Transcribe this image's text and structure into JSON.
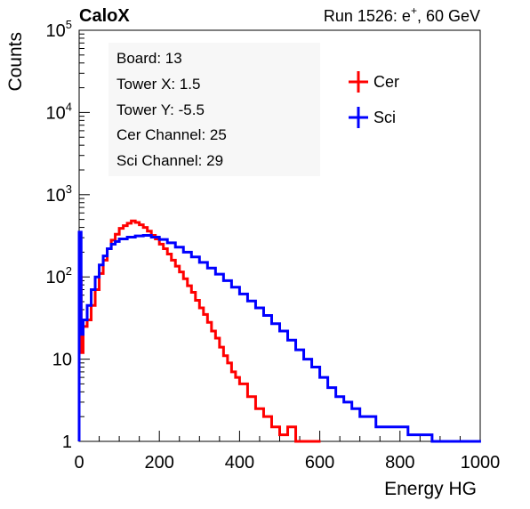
{
  "header": {
    "left_label": "CaloX",
    "right_label_prefix": "Run 1526: e",
    "right_label_sup": "+",
    "right_label_suffix": ", 60 GeV"
  },
  "info_box": {
    "lines": [
      "Board: 13",
      "Tower X: 1.5",
      "Tower Y: -5.5",
      "Cer Channel: 25",
      "Sci Channel: 29"
    ]
  },
  "chart_data": {
    "type": "line",
    "title": "",
    "xlabel": "Energy HG",
    "ylabel": "Counts",
    "xlim": [
      0,
      1000
    ],
    "ylim": [
      1,
      100000
    ],
    "y_scale": "log",
    "grid": false,
    "legend_position": "top-right",
    "x_ticks": [
      "0",
      "200",
      "400",
      "600",
      "800",
      "1000"
    ],
    "y_ticks": [
      {
        "value": 1,
        "base": "1",
        "exp": ""
      },
      {
        "value": 10,
        "base": "10",
        "exp": ""
      },
      {
        "value": 100,
        "base": "10",
        "exp": "2"
      },
      {
        "value": 1000,
        "base": "10",
        "exp": "3"
      },
      {
        "value": 10000,
        "base": "10",
        "exp": "4"
      },
      {
        "value": 100000,
        "base": "10",
        "exp": "5"
      }
    ],
    "series": [
      {
        "name": "Cer",
        "color": "#ff0000",
        "x": [
          0,
          5,
          10,
          20,
          30,
          40,
          50,
          60,
          70,
          80,
          90,
          100,
          110,
          120,
          130,
          140,
          150,
          160,
          170,
          180,
          190,
          200,
          210,
          220,
          230,
          240,
          250,
          260,
          270,
          280,
          290,
          300,
          310,
          320,
          330,
          340,
          350,
          360,
          370,
          380,
          390,
          400,
          420,
          440,
          460,
          480,
          500,
          520,
          540,
          560,
          580,
          600
        ],
        "y": [
          100,
          12,
          25,
          30,
          45,
          70,
          110,
          160,
          220,
          280,
          330,
          390,
          420,
          450,
          480,
          460,
          430,
          400,
          360,
          320,
          290,
          250,
          220,
          190,
          160,
          135,
          115,
          95,
          78,
          65,
          52,
          42,
          35,
          28,
          22,
          18,
          14,
          11,
          9,
          7,
          6,
          5,
          3.5,
          2.5,
          2,
          1.5,
          1.2,
          1.5,
          1,
          1,
          1,
          1
        ]
      },
      {
        "name": "Sci",
        "color": "#0000ff",
        "x": [
          0,
          5,
          10,
          20,
          30,
          40,
          50,
          60,
          70,
          80,
          90,
          100,
          120,
          140,
          160,
          180,
          200,
          220,
          240,
          260,
          280,
          300,
          320,
          340,
          360,
          380,
          400,
          420,
          440,
          460,
          480,
          500,
          520,
          540,
          560,
          580,
          600,
          620,
          640,
          660,
          680,
          700,
          720,
          740,
          760,
          780,
          800,
          820,
          840,
          860,
          880,
          900,
          920,
          940,
          960,
          980,
          1000
        ],
        "y": [
          350,
          20,
          30,
          45,
          70,
          100,
          140,
          180,
          220,
          250,
          270,
          290,
          305,
          315,
          320,
          305,
          285,
          260,
          230,
          200,
          175,
          150,
          128,
          108,
          90,
          75,
          62,
          51,
          42,
          34,
          27,
          22,
          17,
          13,
          10,
          8,
          6,
          4.5,
          3.5,
          3,
          2.5,
          2,
          2,
          1.5,
          1.5,
          1.5,
          1.5,
          1.2,
          1.2,
          1.2,
          1,
          1,
          1,
          1,
          1,
          1,
          1
        ]
      }
    ]
  }
}
